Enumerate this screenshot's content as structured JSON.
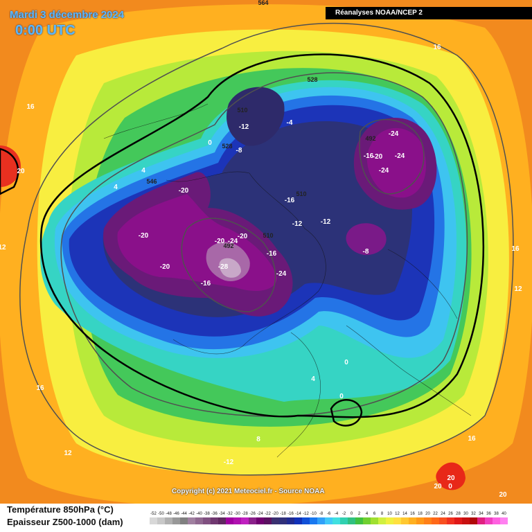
{
  "header": {
    "date": "Mardi 3 décembre 2024",
    "time": "0:00 UTC",
    "source_banner": "Réanalyses NOAA/NCEP 2"
  },
  "footer": {
    "copyright": "Copyright (c) 2021 Meteociel.fr - Source NOAA"
  },
  "legend": {
    "title_temperature": "Température 850hPa (°C)",
    "title_thickness": "Epaisseur Z500-1000 (dam)",
    "scale_labels": [
      "-52",
      "-50",
      "-48",
      "-46",
      "-44",
      "-42",
      "-40",
      "-38",
      "-36",
      "-34",
      "-32",
      "-30",
      "-28",
      "-26",
      "-24",
      "-22",
      "-20",
      "-18",
      "-16",
      "-14",
      "-12",
      "-10",
      "-8",
      "-6",
      "-4",
      "-2",
      "0",
      "2",
      "4",
      "6",
      "8",
      "10",
      "12",
      "14",
      "16",
      "18",
      "20",
      "22",
      "24",
      "26",
      "28",
      "30",
      "32",
      "34",
      "36",
      "38",
      "40"
    ],
    "colors": [
      "#d8d8d8",
      "#c8c8c8",
      "#b0b0b0",
      "#989898",
      "#808080",
      "#a080a0",
      "#906890",
      "#805080",
      "#703870",
      "#602860",
      "#a000a0",
      "#b010b0",
      "#c020c0",
      "#8a208a",
      "#700070",
      "#5a1060",
      "#3a3070",
      "#30307a",
      "#202a90",
      "#1030b8",
      "#1050d8",
      "#1878f0",
      "#30a0f8",
      "#40c8f8",
      "#40e0e0",
      "#30d0b0",
      "#30c080",
      "#40c040",
      "#70d030",
      "#a0e030",
      "#d0f040",
      "#f0f040",
      "#ffe040",
      "#ffc830",
      "#ffb020",
      "#ff9818",
      "#ff8018",
      "#ff6818",
      "#f85020",
      "#f03020",
      "#e01818",
      "#c81010",
      "#b00808",
      "#e02080",
      "#f040c0",
      "#ff60e0",
      "#ff80f0"
    ]
  },
  "map_labels": {
    "temperature": [
      "-12",
      "-8",
      "-4",
      "-20",
      "-20",
      "-20",
      "-16",
      "-16",
      "-12",
      "-12",
      "-8",
      "-16",
      "-24",
      "-28",
      "-24",
      "-20",
      "-20",
      "-24",
      "-24",
      "-20",
      "-16",
      "-24",
      "4",
      "4",
      "0",
      "0",
      "0",
      "4",
      "8",
      "-12",
      "12",
      "16",
      "16",
      "16",
      "16",
      "16",
      "20",
      "20",
      "20",
      "20",
      "12",
      "12",
      "0"
    ],
    "thickness": [
      "564",
      "528",
      "510",
      "528",
      "546",
      "510",
      "510",
      "492",
      "492"
    ]
  },
  "colors": {
    "coldest_core": "#c8a8c8",
    "magenta": "#8a108a",
    "purple": "#6a1a78",
    "navy": "#2c3278",
    "blue": "#1c34b8",
    "mid_blue": "#2070e8",
    "cyan": "#38c8f0",
    "teal": "#30d8c8",
    "green": "#40c460",
    "lime": "#a8e838",
    "yellow": "#f8f040",
    "orange": "#ffb020",
    "red": "#e82818"
  }
}
